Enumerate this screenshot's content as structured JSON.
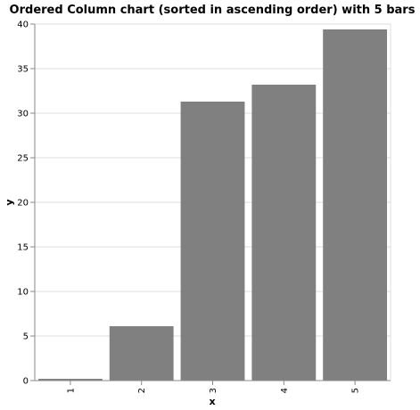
{
  "chart_data": {
    "type": "bar",
    "title": "Ordered Column chart (sorted in ascending order) with 5 bars",
    "xlabel": "x",
    "ylabel": "y",
    "categories": [
      "1",
      "2",
      "3",
      "4",
      "5"
    ],
    "values": [
      0.2,
      6.1,
      31.3,
      33.2,
      39.4
    ],
    "ylim": [
      0,
      40
    ],
    "yticks": [
      0,
      5,
      10,
      15,
      20,
      25,
      30,
      35,
      40
    ],
    "grid": true,
    "bar_color": "#808080",
    "grid_color": "#dddddd",
    "axis_color": "#888888"
  }
}
